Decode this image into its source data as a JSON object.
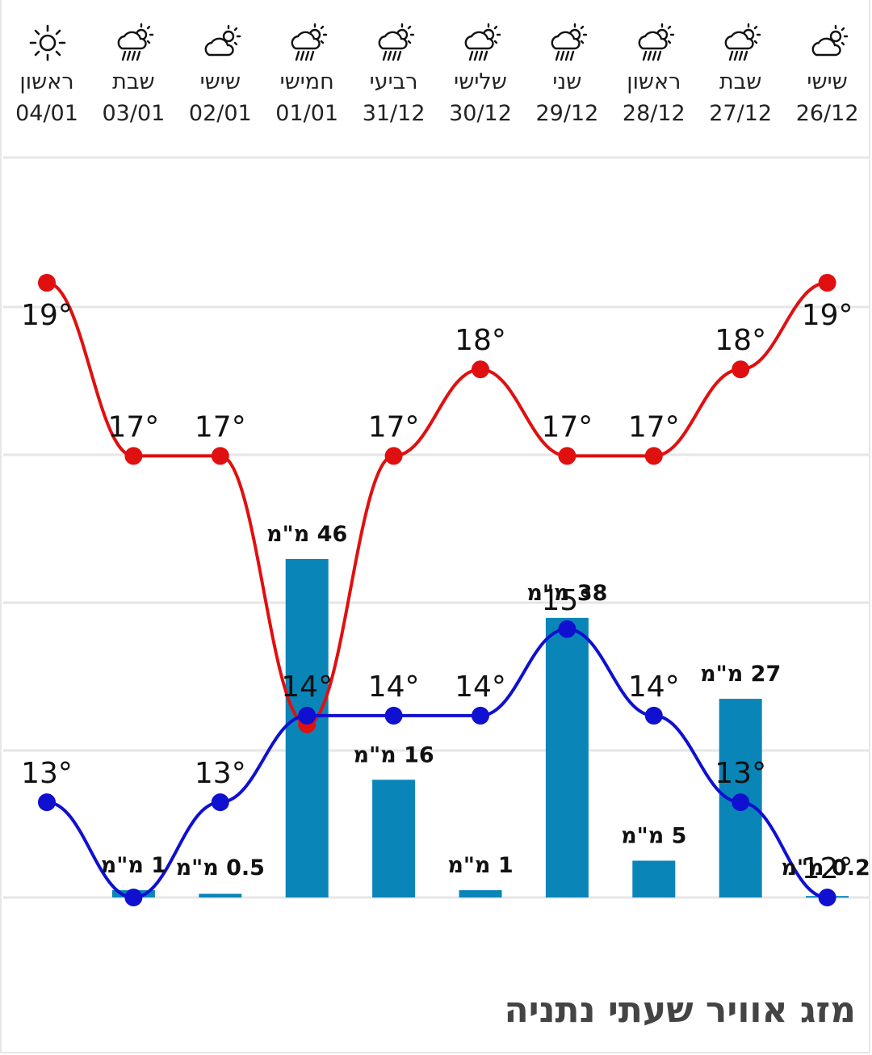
{
  "title": "מזג אוויר שעתי נתניה",
  "colors": {
    "max_line": "#e01010",
    "min_line": "#1010d0",
    "bar": "#0a85b8",
    "grid": "#e6e6e6"
  },
  "days": [
    {
      "name": "ראשון",
      "date": "04/01",
      "icon": "sun-icon"
    },
    {
      "name": "שבת",
      "date": "03/01",
      "icon": "cloud-rain-icon"
    },
    {
      "name": "שישי",
      "date": "02/01",
      "icon": "cloud-sun-icon"
    },
    {
      "name": "חמישי",
      "date": "01/01",
      "icon": "cloud-rain-icon"
    },
    {
      "name": "רביעי",
      "date": "31/12",
      "icon": "cloud-rain-icon"
    },
    {
      "name": "שלישי",
      "date": "30/12",
      "icon": "cloud-rain-icon"
    },
    {
      "name": "שני",
      "date": "29/12",
      "icon": "cloud-rain-icon"
    },
    {
      "name": "ראשון",
      "date": "28/12",
      "icon": "cloud-rain-icon"
    },
    {
      "name": "שבת",
      "date": "27/12",
      "icon": "cloud-rain-icon"
    },
    {
      "name": "שישי",
      "date": "26/12",
      "icon": "cloud-sun-icon"
    }
  ],
  "chart_data": {
    "type": "line",
    "categories": [
      "04/01",
      "03/01",
      "02/01",
      "01/01",
      "31/12",
      "30/12",
      "29/12",
      "28/12",
      "27/12",
      "26/12"
    ],
    "series": [
      {
        "values": [
          19,
          17,
          17,
          13.9,
          17,
          18,
          17,
          17,
          18,
          19
        ],
        "labels": [
          "19°",
          "17°",
          "17°",
          "",
          "17°",
          "18°",
          "17°",
          "17°",
          "18°",
          "19°"
        ]
      },
      {
        "values": [
          13,
          11.9,
          13,
          14,
          14,
          14,
          15,
          14,
          13,
          11.9
        ],
        "labels": [
          "13°",
          "",
          "13°",
          "14°",
          "14°",
          "14°",
          "15°",
          "14°",
          "13°",
          "12°"
        ]
      }
    ],
    "precipitation": {
      "values": [
        0,
        1,
        0.5,
        46,
        16,
        1,
        38,
        5,
        27,
        0.2
      ],
      "labels": [
        "",
        "1 מ\"מ",
        "0.5 מ\"מ",
        "46 מ\"מ",
        "16 מ\"מ",
        "1 מ\"מ",
        "38 מ\"מ",
        "5 מ\"מ",
        "27 מ\"מ",
        "0.2 מ\"מ"
      ]
    },
    "ylim": [
      11.9,
      20.4
    ],
    "precip_ylim": [
      0,
      46
    ],
    "grid": true
  }
}
